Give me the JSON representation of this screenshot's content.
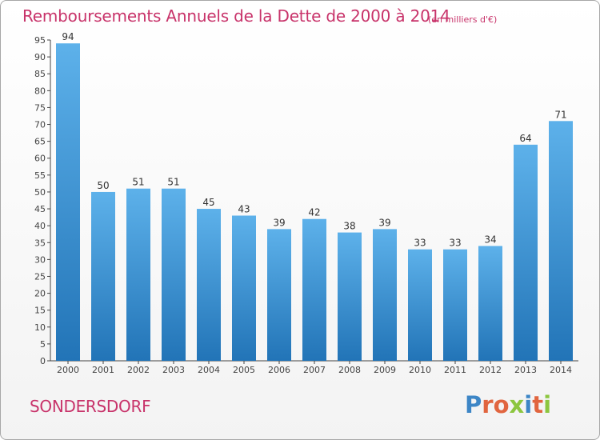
{
  "header": {
    "title": "Remboursements Annuels de la Dette de 2000 à 2014",
    "unit": "(en milliers d'€)"
  },
  "footer": {
    "commune": "SONDERSDORF",
    "logo_text": "Proxiti"
  },
  "colors": {
    "accent": "#c8336a",
    "bar_top": "#5db1ea",
    "bar_bottom": "#2274b7",
    "logo_letters": [
      "#3d86c6",
      "#e1653f",
      "#e1653f",
      "#8cc63f",
      "#3d86c6",
      "#e1653f",
      "#8cc63f"
    ]
  },
  "chart_data": {
    "type": "bar",
    "title": "Remboursements Annuels de la Dette de 2000 à 2014",
    "xlabel": "",
    "ylabel": "",
    "categories": [
      "2000",
      "2001",
      "2002",
      "2003",
      "2004",
      "2005",
      "2006",
      "2007",
      "2008",
      "2009",
      "2010",
      "2011",
      "2012",
      "2013",
      "2014"
    ],
    "values": [
      94,
      50,
      51,
      51,
      45,
      43,
      39,
      42,
      38,
      39,
      33,
      33,
      34,
      64,
      71
    ],
    "ylim": [
      0,
      95
    ],
    "yticks": [
      0,
      5,
      10,
      15,
      20,
      25,
      30,
      35,
      40,
      45,
      50,
      55,
      60,
      65,
      70,
      75,
      80,
      85,
      90,
      95
    ],
    "grid": false,
    "legend": "none"
  }
}
